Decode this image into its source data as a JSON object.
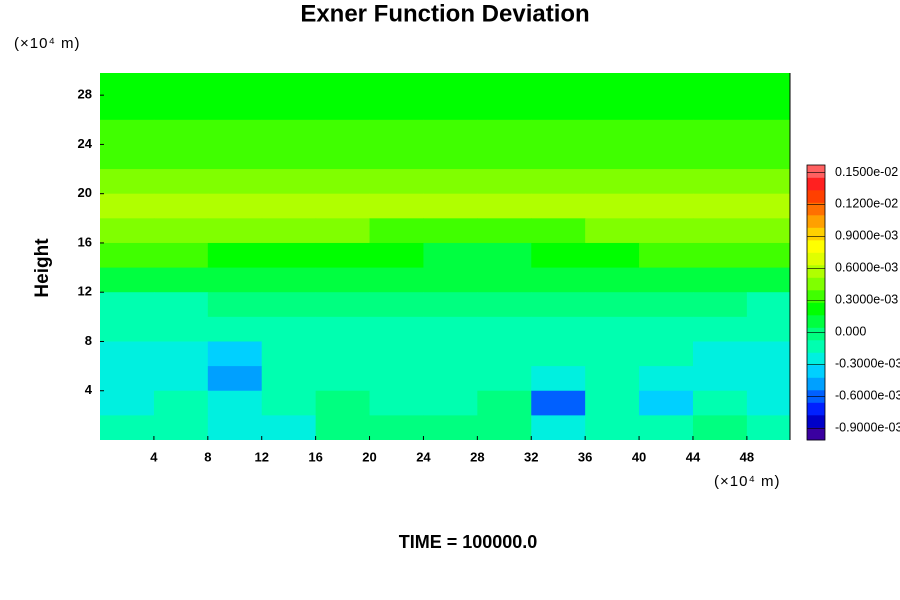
{
  "chart_data": {
    "type": "contour",
    "title": "Exner Function Deviation",
    "y_label": "Height",
    "y_unit": "(×10⁴ m)",
    "x_unit": "(×10⁴ m)",
    "footer": "TIME = 100000.0",
    "xlim": [
      0,
      51.2
    ],
    "ylim": [
      0,
      29.8
    ],
    "xticks": [
      4,
      8,
      12,
      16,
      20,
      24,
      28,
      32,
      36,
      40,
      44,
      48
    ],
    "yticks": [
      4,
      8,
      12,
      16,
      20,
      24,
      28
    ],
    "x": [
      2,
      6,
      10,
      14,
      18,
      22,
      26,
      30,
      34,
      38,
      42,
      46,
      50
    ],
    "y": [
      29,
      27,
      25,
      23,
      21,
      19,
      17,
      15,
      13,
      11,
      9,
      7,
      5,
      3,
      1
    ],
    "z": [
      [
        0.0002,
        0.0002,
        0.0002,
        0.0002,
        0.0002,
        0.0002,
        0.0002,
        0.0002,
        0.0002,
        0.0002,
        0.0002,
        0.0002,
        0.0002
      ],
      [
        0.00025,
        0.00025,
        0.00025,
        0.00025,
        0.00025,
        0.00025,
        0.00025,
        0.00025,
        0.00025,
        0.00025,
        0.00025,
        0.00025,
        0.00025
      ],
      [
        0.0003,
        0.0003,
        0.0003,
        0.0003,
        0.0003,
        0.0003,
        0.0003,
        0.0003,
        0.0003,
        0.0003,
        0.0003,
        0.0003,
        0.0003
      ],
      [
        0.0003,
        0.0003,
        0.0003,
        0.0003,
        0.0003,
        0.0003,
        0.0003,
        0.0003,
        0.0003,
        0.0003,
        0.0003,
        0.0003,
        0.0003
      ],
      [
        0.00045,
        0.00045,
        0.00045,
        0.00045,
        0.00045,
        0.00045,
        0.00045,
        0.00045,
        0.00045,
        0.00045,
        0.00045,
        0.00045,
        0.00045
      ],
      [
        0.0006,
        0.0006,
        0.0006,
        0.0006,
        0.0006,
        0.0006,
        0.0006,
        0.0006,
        0.0006,
        0.0006,
        0.0006,
        0.0006,
        0.0006
      ],
      [
        0.0004,
        0.0004,
        0.0004,
        0.0004,
        0.0004,
        0.00035,
        0.0003,
        0.0003,
        0.00035,
        0.0004,
        0.0004,
        0.0004,
        0.0004
      ],
      [
        0.0003,
        0.0003,
        0.00025,
        0.00025,
        0.0002,
        0.0002,
        0.00015,
        0.00015,
        0.0002,
        0.00025,
        0.0003,
        0.0003,
        0.0003
      ],
      [
        0.0001,
        0.0001,
        0.0001,
        0.0001,
        5e-05,
        5e-05,
        5e-05,
        5e-05,
        5e-05,
        0.0001,
        0.0001,
        0.0001,
        0.0001
      ],
      [
        -0.0001,
        -0.0001,
        -5e-05,
        -5e-05,
        -5e-05,
        -5e-05,
        -5e-05,
        -5e-05,
        -5e-05,
        -5e-05,
        -5e-05,
        -5e-05,
        -0.0001
      ],
      [
        -0.00015,
        -0.00015,
        -0.0001,
        -0.0001,
        -0.0001,
        -0.00015,
        -0.0001,
        -0.00015,
        -0.00015,
        -0.0001,
        -0.0001,
        -0.00015,
        -0.00015
      ],
      [
        -0.0002,
        -0.0002,
        -0.0004,
        -0.00015,
        -0.0001,
        -0.00015,
        -0.00015,
        -0.0001,
        -0.00015,
        -0.00015,
        -0.00015,
        -0.0002,
        -0.0002
      ],
      [
        -0.0003,
        -0.0002,
        -0.0005,
        -0.00015,
        -0.0001,
        -0.00015,
        -0.00015,
        -0.0001,
        -0.0002,
        -0.00015,
        -0.0003,
        -0.0002,
        -0.0003
      ],
      [
        -0.0003,
        -0.00015,
        -0.0002,
        -0.0001,
        -5e-05,
        -0.0001,
        -0.0001,
        -5e-05,
        -0.0006,
        -0.00015,
        -0.00035,
        -0.00015,
        -0.0003
      ],
      [
        -0.00015,
        -0.0001,
        -0.0002,
        -0.0003,
        -5e-05,
        -5e-05,
        -5e-05,
        -5e-05,
        -0.0003,
        -0.0001,
        -0.0001,
        -5e-05,
        -0.0001
      ]
    ],
    "clim": [
      -0.00101,
      0.00157
    ],
    "colormap": [
      "#3a00a0",
      "#0000c8",
      "#0020ff",
      "#0060ff",
      "#00a0ff",
      "#00d0ff",
      "#00f0e0",
      "#00ffb0",
      "#00ff80",
      "#00ff40",
      "#00ff00",
      "#40ff00",
      "#80ff00",
      "#b0ff00",
      "#e0ff00",
      "#ffff00",
      "#ffd000",
      "#ffa000",
      "#ff7000",
      "#ff4000",
      "#ff2020",
      "#ff6060"
    ],
    "cticks": [
      {
        "value": 0.0015,
        "label": "0.1500e-02"
      },
      {
        "value": 0.0012,
        "label": "0.1200e-02"
      },
      {
        "value": 0.0009,
        "label": "0.9000e-03"
      },
      {
        "value": 0.0006,
        "label": "0.6000e-03"
      },
      {
        "value": 0.0003,
        "label": "0.3000e-03"
      },
      {
        "value": 0,
        "label": "0.000"
      },
      {
        "value": -0.0003,
        "label": "-0.3000e-03"
      },
      {
        "value": -0.0006,
        "label": "-0.6000e-03"
      },
      {
        "value": -0.0009,
        "label": "-0.9000e-03"
      }
    ]
  }
}
